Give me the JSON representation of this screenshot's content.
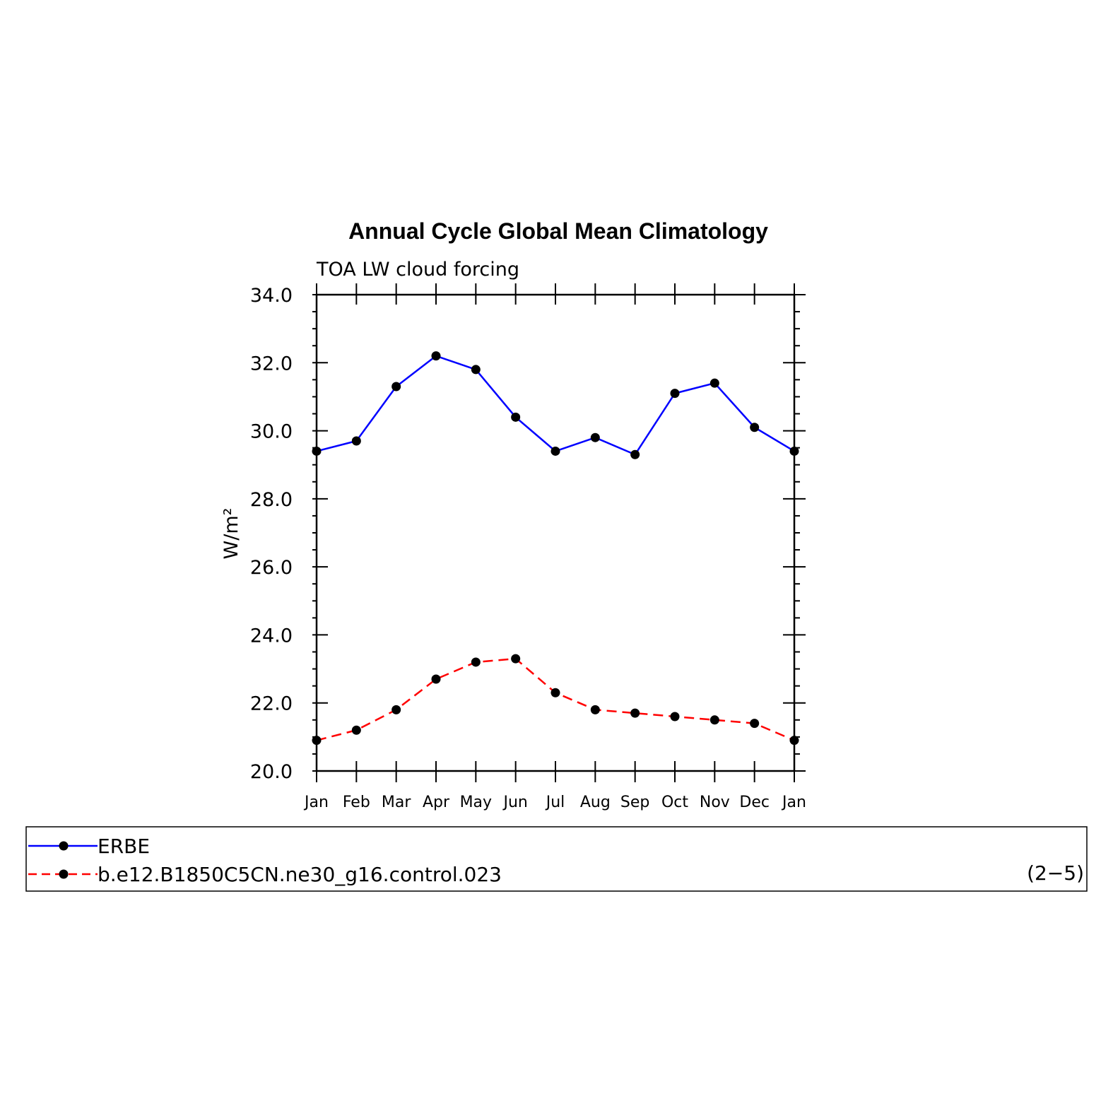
{
  "chart_data": {
    "type": "line",
    "title": "Annual Cycle Global Mean Climatology",
    "subtitle": "TOA LW cloud forcing",
    "ylabel": "W/m²",
    "ylim": [
      20.0,
      34.0
    ],
    "yticks": [
      "20.0",
      "22.0",
      "24.0",
      "26.0",
      "28.0",
      "30.0",
      "32.0",
      "34.0"
    ],
    "categories": [
      "Jan",
      "Feb",
      "Mar",
      "Apr",
      "May",
      "Jun",
      "Jul",
      "Aug",
      "Sep",
      "Oct",
      "Nov",
      "Dec",
      "Jan"
    ],
    "series": [
      {
        "name": "ERBE",
        "color": "#0000ff",
        "dash": "solid",
        "values": [
          29.4,
          29.7,
          31.3,
          32.2,
          31.8,
          30.4,
          29.4,
          29.8,
          29.3,
          31.1,
          31.4,
          30.1,
          29.4
        ]
      },
      {
        "name": "b.e12.B1850C5CN.ne30_g16.control.023",
        "color": "#ff0000",
        "dash": "dashed",
        "values": [
          20.9,
          21.2,
          21.8,
          22.7,
          23.2,
          23.3,
          22.3,
          21.8,
          21.7,
          21.6,
          21.5,
          21.4,
          20.9
        ]
      }
    ],
    "grid": false,
    "legend_position": "bottom",
    "panel_label": "(2−5)"
  }
}
